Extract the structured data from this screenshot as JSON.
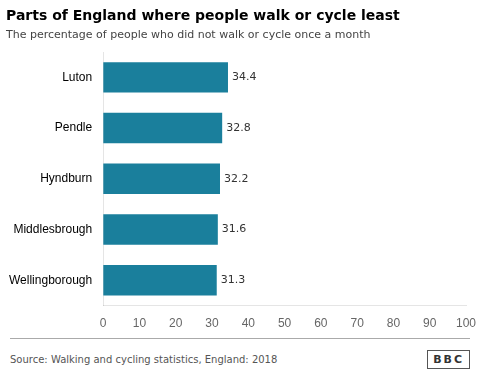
{
  "chart_data": {
    "type": "bar",
    "orientation": "horizontal",
    "title": "Parts of England where people walk or cycle least",
    "subtitle": "The percentage of people who did not walk or cycle once a month",
    "categories": [
      "Wellingborough",
      "Middlesbrough",
      "Hyndburn",
      "Pendle",
      "Luton"
    ],
    "values": [
      31.3,
      31.6,
      32.2,
      32.8,
      34.4
    ],
    "color": "#1a7f9c",
    "xlim": [
      0,
      100
    ],
    "xticks": [
      0,
      10,
      20,
      30,
      40,
      50,
      60,
      70,
      80,
      90,
      100
    ],
    "data_labels": true,
    "grid": false,
    "annotations": [
      "Source: Walking and cycling statistics, England: 2018",
      "BBC"
    ]
  }
}
